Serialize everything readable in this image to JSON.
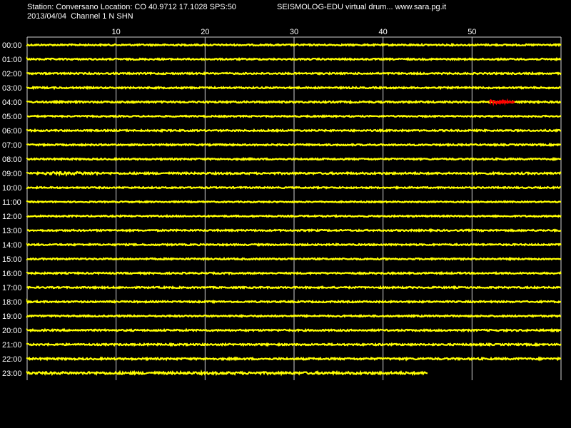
{
  "header": {
    "station_line": "Station: Conversano Location: CO 40.9712 17.1028 SPS:50",
    "date_line": "2013/04/04  Channel 1 N SHN",
    "app_line": "SEISMOLOG-EDU virtual drum... www.sara.pg.it"
  },
  "chart_data": {
    "type": "line",
    "title": "",
    "xlabel": "",
    "ylabel": "",
    "x_unit": "minutes",
    "xlim": [
      0,
      60
    ],
    "x_ticks": [
      10,
      20,
      30,
      40,
      50
    ],
    "x_tick_labels": [
      "10",
      "20",
      "30",
      "40",
      "50"
    ],
    "grid": true,
    "trace_color": "#ffff00",
    "event_color": "#ff0000",
    "background": "#000000",
    "rows": [
      {
        "label": "00:00",
        "end_minute": 60,
        "noise": 1.0
      },
      {
        "label": "01:00",
        "end_minute": 60,
        "noise": 1.0
      },
      {
        "label": "02:00",
        "end_minute": 60,
        "noise": 1.0
      },
      {
        "label": "03:00",
        "end_minute": 60,
        "noise": 1.0
      },
      {
        "label": "04:00",
        "end_minute": 60,
        "noise": 1.1,
        "event": {
          "start_minute": 52,
          "end_minute": 54.8,
          "amplitude": 3
        }
      },
      {
        "label": "05:00",
        "end_minute": 60,
        "noise": 0.9
      },
      {
        "label": "06:00",
        "end_minute": 60,
        "noise": 1.0
      },
      {
        "label": "07:00",
        "end_minute": 60,
        "noise": 1.0
      },
      {
        "label": "08:00",
        "end_minute": 60,
        "noise": 1.0
      },
      {
        "label": "09:00",
        "end_minute": 60,
        "noise": 1.2,
        "burst": {
          "start_minute": 2,
          "end_minute": 8,
          "amplitude": 2
        }
      },
      {
        "label": "10:00",
        "end_minute": 60,
        "noise": 0.9
      },
      {
        "label": "11:00",
        "end_minute": 60,
        "noise": 0.8
      },
      {
        "label": "12:00",
        "end_minute": 60,
        "noise": 0.9
      },
      {
        "label": "13:00",
        "end_minute": 60,
        "noise": 1.0
      },
      {
        "label": "14:00",
        "end_minute": 60,
        "noise": 1.0
      },
      {
        "label": "15:00",
        "end_minute": 60,
        "noise": 1.0
      },
      {
        "label": "16:00",
        "end_minute": 60,
        "noise": 1.0
      },
      {
        "label": "17:00",
        "end_minute": 60,
        "noise": 1.0
      },
      {
        "label": "18:00",
        "end_minute": 60,
        "noise": 1.0
      },
      {
        "label": "19:00",
        "end_minute": 60,
        "noise": 1.0
      },
      {
        "label": "20:00",
        "end_minute": 60,
        "noise": 1.1
      },
      {
        "label": "21:00",
        "end_minute": 60,
        "noise": 1.1
      },
      {
        "label": "22:00",
        "end_minute": 60,
        "noise": 1.2
      },
      {
        "label": "23:00",
        "end_minute": 45,
        "noise": 1.6
      }
    ]
  }
}
